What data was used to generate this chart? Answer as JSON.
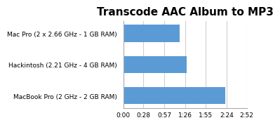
{
  "title": "Transcode AAC Album to MP3",
  "categories": [
    "MacBook Pro (2 GHz - 2 GB RAM)",
    "Hackintosh (2.21 GHz - 4 GB RAM)",
    "Mac Pro (2 x 2.66 GHz - 1 GB RAM)"
  ],
  "values": [
    142,
    88,
    78
  ],
  "bar_color": "#5b9bd5",
  "xlim": [
    0,
    172
  ],
  "xticks": [
    0,
    28,
    57,
    86,
    115,
    144,
    172
  ],
  "xtick_labels": [
    "0:00",
    "0:28",
    "0:57",
    "1:26",
    "1:55",
    "2:24",
    "2:52"
  ],
  "title_fontsize": 11,
  "label_fontsize": 6.5,
  "tick_fontsize": 6.5,
  "fig_bg": "#ffffff",
  "plot_bg": "#ffffff",
  "grid_color": "#d0d0d0"
}
